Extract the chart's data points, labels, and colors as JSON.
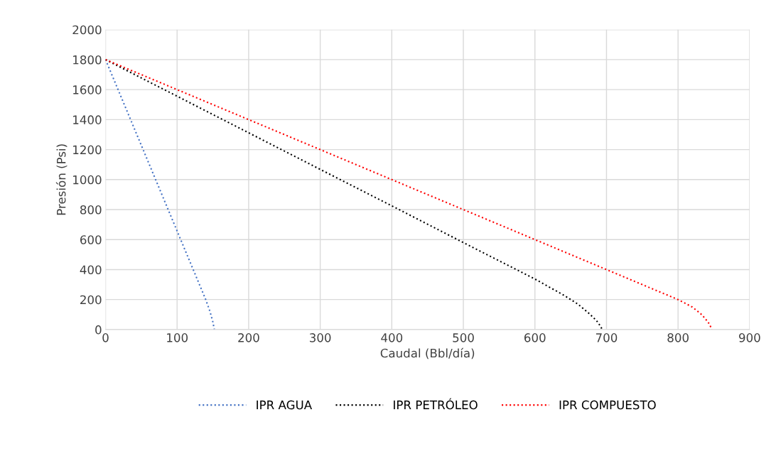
{
  "chart_data": {
    "type": "line",
    "xlabel": "Caudal (Bbl/día)",
    "ylabel": "Presión (Psi)",
    "xlim": [
      0,
      900
    ],
    "xticks": [
      0,
      100,
      200,
      300,
      400,
      500,
      600,
      700,
      800,
      900
    ],
    "ylim": [
      0,
      2000
    ],
    "yticks": [
      0,
      200,
      400,
      600,
      800,
      1000,
      1200,
      1400,
      1600,
      1800,
      2000
    ],
    "grid": true,
    "legend": "bottom",
    "line_style": "dotted",
    "marker": "none",
    "series": [
      {
        "name": "IPR AGUA",
        "color": "#4472c4",
        "x": [
          0,
          35,
          70,
          105,
          140,
          146,
          150,
          152
        ],
        "values": [
          1800,
          1400,
          1000,
          600,
          200,
          120,
          50,
          0
        ]
      },
      {
        "name": "IPR PETRÓLEO",
        "color": "#000000",
        "x": [
          0,
          100,
          200,
          300,
          400,
          500,
          600,
          640,
          660,
          675,
          686,
          692,
          694
        ],
        "values": [
          1800,
          1556,
          1312,
          1068,
          825,
          580,
          337,
          230,
          170,
          110,
          60,
          20,
          0
        ]
      },
      {
        "name": "IPR COMPUESTO",
        "color": "#ff0000",
        "x": [
          0,
          100,
          200,
          300,
          400,
          500,
          600,
          700,
          800,
          820,
          833,
          842,
          846,
          847
        ],
        "values": [
          1800,
          1600,
          1400,
          1200,
          1000,
          800,
          600,
          400,
          200,
          150,
          100,
          50,
          15,
          0
        ]
      }
    ]
  }
}
